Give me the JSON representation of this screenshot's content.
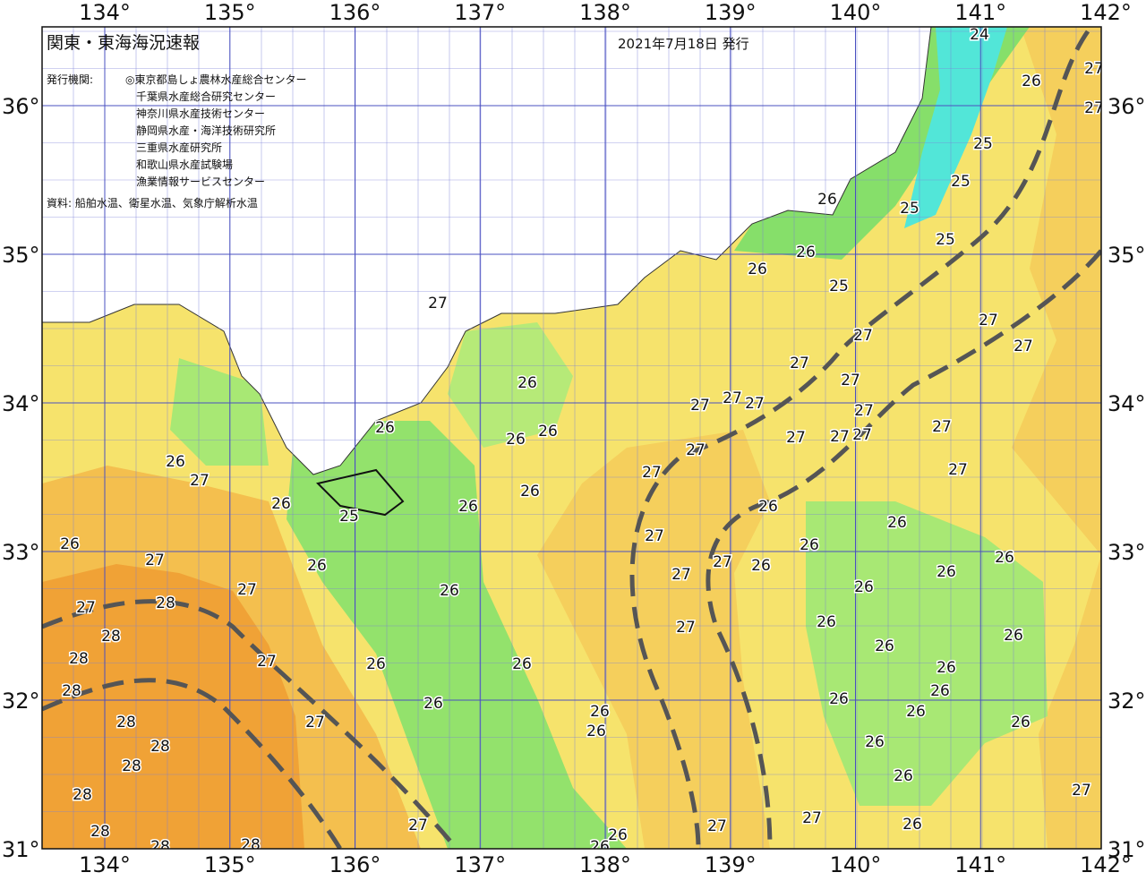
{
  "header": {
    "title": "関東・東海海況速報",
    "date": "2021年7月18日 発行",
    "issuer_label": "発行機関:",
    "issuers": [
      "◎東京都島しょ農林水産総合センター",
      "千葉県水産総合研究センター",
      "神奈川県水産技術センター",
      "静岡県水産・海洋技術研究所",
      "三重県水産研究所",
      "和歌山県水産試験場",
      "漁業情報サービスセンター"
    ],
    "source": "資料: 船舶水温、衛星水温、気象庁解析水温"
  },
  "map": {
    "longitudes": [
      {
        "value": 134,
        "label": "134°"
      },
      {
        "value": 135,
        "label": "135°"
      },
      {
        "value": 136,
        "label": "136°"
      },
      {
        "value": 137,
        "label": "137°"
      },
      {
        "value": 138,
        "label": "138°"
      },
      {
        "value": 139,
        "label": "139°"
      },
      {
        "value": 140,
        "label": "140°"
      },
      {
        "value": 141,
        "label": "141°"
      },
      {
        "value": 142,
        "label": "142°"
      }
    ],
    "latitudes": [
      {
        "value": 36,
        "label": "36°"
      },
      {
        "value": 35,
        "label": "35°"
      },
      {
        "value": 34,
        "label": "34°"
      },
      {
        "value": 33,
        "label": "33°"
      },
      {
        "value": 32,
        "label": "32°"
      },
      {
        "value": 31,
        "label": "31°"
      }
    ],
    "contour_labels": [
      24,
      27,
      26,
      27,
      25,
      25,
      26,
      25,
      25,
      26,
      26,
      25,
      27,
      27,
      27,
      27,
      27,
      26,
      27,
      27,
      27,
      27,
      27,
      27,
      26,
      26,
      26,
      27,
      27,
      27,
      27,
      26,
      27,
      27,
      27,
      26,
      26,
      26,
      26,
      25,
      26,
      27,
      26,
      26,
      27,
      26,
      27,
      26,
      26,
      27,
      26,
      26,
      27,
      26,
      28,
      27,
      26,
      27,
      28,
      26,
      26,
      28,
      27,
      26,
      26,
      26,
      28,
      26,
      26,
      26,
      26,
      26,
      28,
      27,
      26,
      26,
      28,
      26,
      28,
      26,
      28,
      27,
      27,
      27,
      27,
      26,
      28,
      26,
      28,
      28,
      26
    ]
  }
}
